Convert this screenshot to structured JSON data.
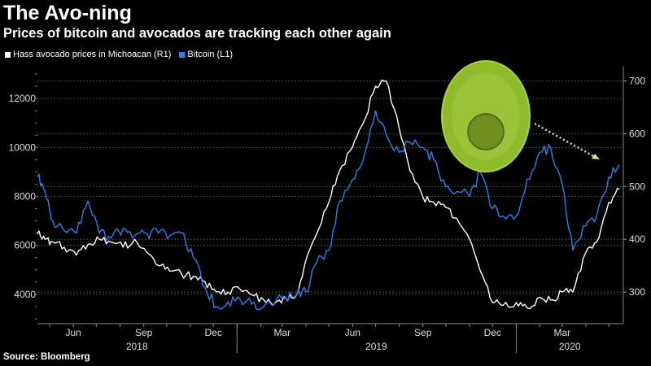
{
  "title": "The Avo-ning",
  "subtitle": "Prices of bitcoin and avocados are tracking each other again",
  "source": "Source: Bloomberg",
  "colors": {
    "avocado": "#ffffff",
    "bitcoin": "#2f7fe6",
    "background": "#000000",
    "grid": "#555555",
    "avocado_icon_outer": "#9acd2e",
    "avocado_icon_inner": "#6b8e1e"
  },
  "chart_data": {
    "type": "line",
    "title": "The Avo-ning",
    "x_axis": {
      "month_ticks": [
        "Jun",
        "Sep",
        "Dec",
        "Mar",
        "Jun",
        "Sep",
        "Dec",
        "Mar"
      ],
      "year_labels": [
        "2018",
        "2019",
        "2020"
      ],
      "range": [
        "2018-04-15",
        "2020-05-20"
      ]
    },
    "y_left": {
      "label": "Bitcoin (L1)",
      "ticks": [
        4000,
        6000,
        8000,
        10000,
        12000
      ],
      "range": [
        2800,
        13300
      ]
    },
    "y_right": {
      "label": "Hass avocado prices in Michoacan (R1)",
      "ticks": [
        300,
        400,
        500,
        600,
        700
      ],
      "range": [
        240,
        727
      ]
    },
    "grid": true,
    "legend_position": "top-left",
    "series": [
      {
        "name": "Hass avocado prices in Michoacan (R1)",
        "axis": "right",
        "color": "#ffffff",
        "x": [
          "2018-04-15",
          "2018-04-25",
          "2018-05-05",
          "2018-05-20",
          "2018-06-05",
          "2018-06-20",
          "2018-07-05",
          "2018-07-20",
          "2018-08-05",
          "2018-08-20",
          "2018-09-05",
          "2018-09-20",
          "2018-10-05",
          "2018-10-20",
          "2018-11-05",
          "2018-11-20",
          "2018-12-05",
          "2018-12-20",
          "2019-01-05",
          "2019-01-20",
          "2019-02-05",
          "2019-02-20",
          "2019-03-05",
          "2019-03-20",
          "2019-04-01",
          "2019-04-15",
          "2019-05-01",
          "2019-05-15",
          "2019-06-01",
          "2019-06-15",
          "2019-07-01",
          "2019-07-15",
          "2019-08-01",
          "2019-08-15",
          "2019-09-01",
          "2019-09-15",
          "2019-10-01",
          "2019-10-15",
          "2019-11-01",
          "2019-11-15",
          "2019-12-01",
          "2019-12-15",
          "2020-01-01",
          "2020-01-15",
          "2020-02-01",
          "2020-02-15",
          "2020-03-01",
          "2020-03-15",
          "2020-04-01",
          "2020-04-15",
          "2020-05-01",
          "2020-05-15"
        ],
        "values": [
          410,
          400,
          395,
          385,
          370,
          390,
          400,
          395,
          385,
          400,
          375,
          350,
          340,
          335,
          330,
          320,
          300,
          300,
          305,
          295,
          285,
          280,
          290,
          295,
          360,
          410,
          470,
          530,
          575,
          620,
          690,
          700,
          610,
          530,
          480,
          470,
          460,
          440,
          400,
          340,
          280,
          275,
          280,
          270,
          290,
          285,
          300,
          300,
          375,
          395,
          470,
          495
        ]
      },
      {
        "name": "Bitcoin (L1)",
        "axis": "left",
        "color": "#2f7fe6",
        "x": [
          "2018-04-15",
          "2018-04-25",
          "2018-05-05",
          "2018-05-20",
          "2018-06-05",
          "2018-06-20",
          "2018-07-05",
          "2018-07-20",
          "2018-08-05",
          "2018-08-20",
          "2018-09-05",
          "2018-09-20",
          "2018-10-05",
          "2018-10-20",
          "2018-11-05",
          "2018-11-20",
          "2018-12-05",
          "2018-12-20",
          "2019-01-05",
          "2019-01-20",
          "2019-02-05",
          "2019-02-20",
          "2019-03-05",
          "2019-03-20",
          "2019-04-01",
          "2019-04-15",
          "2019-05-01",
          "2019-05-15",
          "2019-06-01",
          "2019-06-15",
          "2019-07-01",
          "2019-07-15",
          "2019-08-01",
          "2019-08-15",
          "2019-09-01",
          "2019-09-15",
          "2019-10-01",
          "2019-10-15",
          "2019-11-01",
          "2019-11-15",
          "2019-12-01",
          "2019-12-15",
          "2020-01-01",
          "2020-01-15",
          "2020-02-01",
          "2020-02-15",
          "2020-03-01",
          "2020-03-15",
          "2020-04-01",
          "2020-04-15",
          "2020-05-01",
          "2020-05-15"
        ],
        "values": [
          8800,
          8200,
          7000,
          6600,
          6500,
          7800,
          6500,
          6300,
          6700,
          6400,
          6500,
          6500,
          6400,
          6500,
          5500,
          4300,
          3500,
          3700,
          3800,
          3600,
          3500,
          3700,
          3900,
          4000,
          4100,
          5300,
          5800,
          7800,
          8700,
          9500,
          11500,
          10500,
          9800,
          10200,
          10000,
          9500,
          8400,
          8200,
          8000,
          9000,
          7500,
          7200,
          7200,
          8700,
          9800,
          10000,
          8500,
          5800,
          6800,
          7200,
          8800,
          9300
        ]
      }
    ],
    "annotations": [
      "avocado-icon",
      "dashed-arrow"
    ]
  }
}
